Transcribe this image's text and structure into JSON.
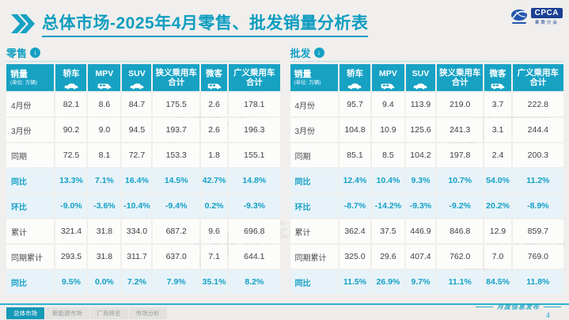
{
  "title": {
    "text": "总体市场-2025年4月零售、批发销量分析表"
  },
  "logo": {
    "name": "CPCA",
    "subtitle": "乘联分会"
  },
  "colors": {
    "accent": "#17a2c4",
    "highlight_bg": "#e7f3f9",
    "logo_blue": "#1b3f94"
  },
  "watermark": "乘联分会",
  "table_template": {
    "corner_label": "销量",
    "corner_unit": "(单位: 万辆)",
    "columns": [
      {
        "label": "轿车",
        "icon": "sedan-icon",
        "icon_type": "car"
      },
      {
        "label": "MPV",
        "icon": "mpv-icon",
        "icon_type": "van"
      },
      {
        "label": "SUV",
        "icon": "suv-icon",
        "icon_type": "car"
      },
      {
        "label": "狭义乘用车",
        "label2": "合计"
      },
      {
        "label": "微客",
        "icon": "minibus-icon",
        "icon_type": "van"
      },
      {
        "label": "广义乘用车",
        "label2": "合计"
      }
    ]
  },
  "tables": [
    {
      "section_label": "零售",
      "rows": [
        {
          "label": "4月份",
          "highlight": false,
          "values": [
            "82.1",
            "8.6",
            "84.7",
            "175.5",
            "2.6",
            "178.1"
          ]
        },
        {
          "label": "3月份",
          "highlight": false,
          "values": [
            "90.2",
            "9.0",
            "94.5",
            "193.7",
            "2.6",
            "196.3"
          ]
        },
        {
          "label": "同期",
          "highlight": false,
          "values": [
            "72.5",
            "8.1",
            "72.7",
            "153.3",
            "1.8",
            "155.1"
          ]
        },
        {
          "label": "同比",
          "highlight": true,
          "values": [
            "13.3%",
            "7.1%",
            "16.4%",
            "14.5%",
            "42.7%",
            "14.8%"
          ]
        },
        {
          "label": "环比",
          "highlight": true,
          "values": [
            "-9.0%",
            "-3.6%",
            "-10.4%",
            "-9.4%",
            "0.2%",
            "-9.3%"
          ]
        },
        {
          "label": "累计",
          "highlight": false,
          "values": [
            "321.4",
            "31.8",
            "334.0",
            "687.2",
            "9.6",
            "696.8"
          ]
        },
        {
          "label": "同期累计",
          "highlight": false,
          "values": [
            "293.5",
            "31.8",
            "311.7",
            "637.0",
            "7.1",
            "644.1"
          ]
        },
        {
          "label": "同比",
          "highlight": true,
          "values": [
            "9.5%",
            "0.0%",
            "7.2%",
            "7.9%",
            "35.1%",
            "8.2%"
          ]
        }
      ]
    },
    {
      "section_label": "批发",
      "rows": [
        {
          "label": "4月份",
          "highlight": false,
          "values": [
            "95.7",
            "9.4",
            "113.9",
            "219.0",
            "3.7",
            "222.8"
          ]
        },
        {
          "label": "3月份",
          "highlight": false,
          "values": [
            "104.8",
            "10.9",
            "125.6",
            "241.3",
            "3.1",
            "244.4"
          ]
        },
        {
          "label": "同期",
          "highlight": false,
          "values": [
            "85.1",
            "8.5",
            "104.2",
            "197.8",
            "2.4",
            "200.3"
          ]
        },
        {
          "label": "同比",
          "highlight": true,
          "values": [
            "12.4%",
            "10.4%",
            "9.3%",
            "10.7%",
            "54.0%",
            "11.2%"
          ]
        },
        {
          "label": "环比",
          "highlight": true,
          "values": [
            "-8.7%",
            "-14.2%",
            "-9.3%",
            "-9.2%",
            "20.2%",
            "-8.9%"
          ]
        },
        {
          "label": "累计",
          "highlight": false,
          "values": [
            "362.4",
            "37.5",
            "446.9",
            "846.8",
            "12.9",
            "859.7"
          ]
        },
        {
          "label": "同期累计",
          "highlight": false,
          "values": [
            "325.0",
            "29.6",
            "407.4",
            "762.0",
            "7.0",
            "769.0"
          ]
        },
        {
          "label": "同比",
          "highlight": true,
          "values": [
            "11.5%",
            "26.9%",
            "9.7%",
            "11.1%",
            "84.5%",
            "11.8%"
          ]
        }
      ]
    }
  ],
  "footer": {
    "tabs": [
      "总体市场",
      "新能源市场",
      "厂商排名",
      "市场分析"
    ],
    "active_tab": 0,
    "label": "月度信息发布",
    "page": "4"
  }
}
